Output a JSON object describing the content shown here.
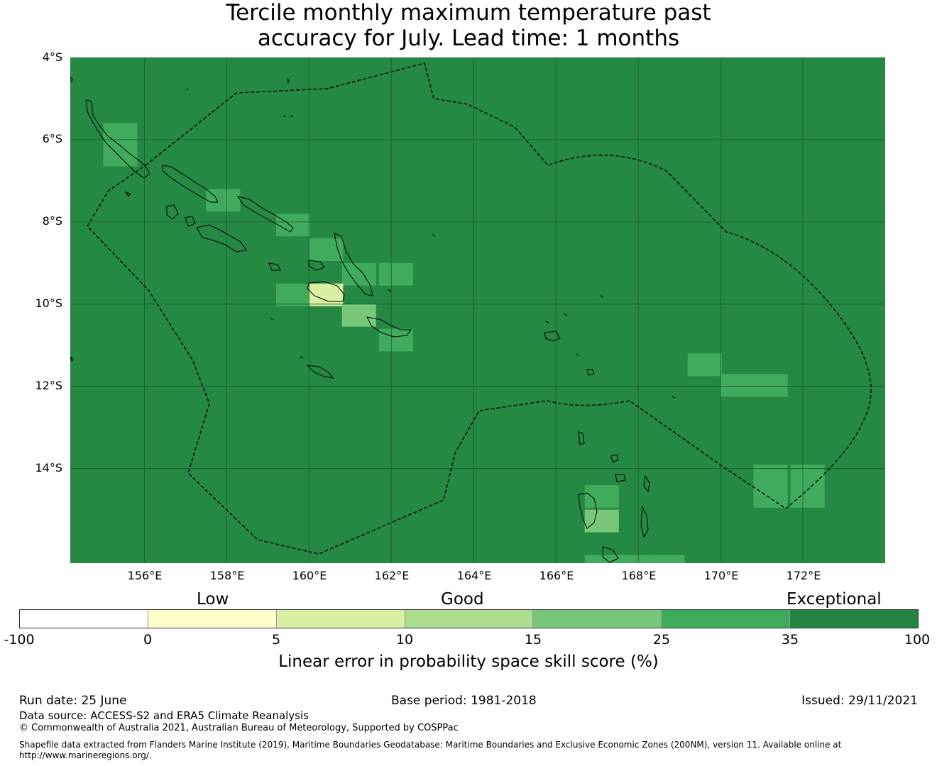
{
  "title": {
    "line1": "Tercile monthly maximum temperature past",
    "line2": "accuracy for July. Lead time: 1 months"
  },
  "map": {
    "background_color": "#258843",
    "lat_ticks": [
      "4°S",
      "6°S",
      "8°S",
      "10°S",
      "12°S",
      "14°S"
    ],
    "lon_ticks": [
      "156°E",
      "158°E",
      "160°E",
      "162°E",
      "164°E",
      "166°E",
      "168°E",
      "170°E",
      "172°E"
    ],
    "extent": {
      "lon_min": 154.2,
      "lon_max": 174.0,
      "lat_min": -16.3,
      "lat_max": -4.0
    },
    "grid_lons": [
      156,
      158,
      160,
      162,
      164,
      166,
      168,
      170,
      172
    ],
    "grid_lats": [
      -4,
      -6,
      -8,
      -10,
      -12,
      -14
    ],
    "cells": [
      {
        "lon": 155.0,
        "lat": -5.6,
        "value": 30
      },
      {
        "lon": 155.0,
        "lat": -6.1,
        "value": 30
      },
      {
        "lon": 157.5,
        "lat": -7.2,
        "value": 30
      },
      {
        "lon": 159.2,
        "lat": -7.8,
        "value": 30
      },
      {
        "lon": 160.0,
        "lat": -8.4,
        "value": 30
      },
      {
        "lon": 160.8,
        "lat": -9.0,
        "value": 30
      },
      {
        "lon": 161.7,
        "lat": -9.0,
        "value": 30
      },
      {
        "lon": 159.2,
        "lat": -9.5,
        "value": 30
      },
      {
        "lon": 160.0,
        "lat": -9.5,
        "value": 8
      },
      {
        "lon": 160.8,
        "lat": -10.0,
        "value": 20
      },
      {
        "lon": 161.7,
        "lat": -10.6,
        "value": 30
      },
      {
        "lon": 169.2,
        "lat": -11.2,
        "value": 30
      },
      {
        "lon": 170.0,
        "lat": -11.7,
        "value": 30
      },
      {
        "lon": 170.8,
        "lat": -11.7,
        "value": 30
      },
      {
        "lon": 170.8,
        "lat": -13.9,
        "value": 30
      },
      {
        "lon": 171.7,
        "lat": -13.9,
        "value": 30
      },
      {
        "lon": 170.8,
        "lat": -14.4,
        "value": 30
      },
      {
        "lon": 171.7,
        "lat": -14.4,
        "value": 30
      },
      {
        "lon": 166.7,
        "lat": -14.4,
        "value": 30
      },
      {
        "lon": 166.7,
        "lat": -15.0,
        "value": 20
      },
      {
        "lon": 166.7,
        "lat": -16.1,
        "value": 30
      },
      {
        "lon": 167.5,
        "lat": -16.1,
        "value": 30
      },
      {
        "lon": 168.3,
        "lat": -16.1,
        "value": 30
      }
    ]
  },
  "colorbar": {
    "category_labels": {
      "low": "Low",
      "good": "Good",
      "exceptional": "Exceptional"
    },
    "bounds": [
      -100,
      0,
      5,
      10,
      15,
      25,
      35,
      100
    ],
    "tick_labels": [
      "-100",
      "0",
      "5",
      "10",
      "15",
      "25",
      "35",
      "100"
    ],
    "colors": [
      "#ffffff",
      "#ffffcc",
      "#d9f0a3",
      "#addd8e",
      "#78c679",
      "#41ab5d",
      "#238443"
    ],
    "title": "Linear error in probability space skill score (%)"
  },
  "footer": {
    "run_date": "Run date: 25 June",
    "base_period": "Base period: 1981-2018",
    "issued": "Issued: 29/11/2021",
    "data_source": "Data source: ACCESS-S2 and ERA5 Climate Reanalysis",
    "copyright": "© Commonwealth of Australia 2021, Australian Bureau of Meteorology, Supported by COSPPac",
    "shapefile_note": "Shapefile data extracted from Flanders Marine Institute (2019), Maritime Boundaries Geodatabase: Maritime Boundaries and Exclusive Economic Zones (200NM), version 11. Available online at http://www.marineregions.org/."
  }
}
